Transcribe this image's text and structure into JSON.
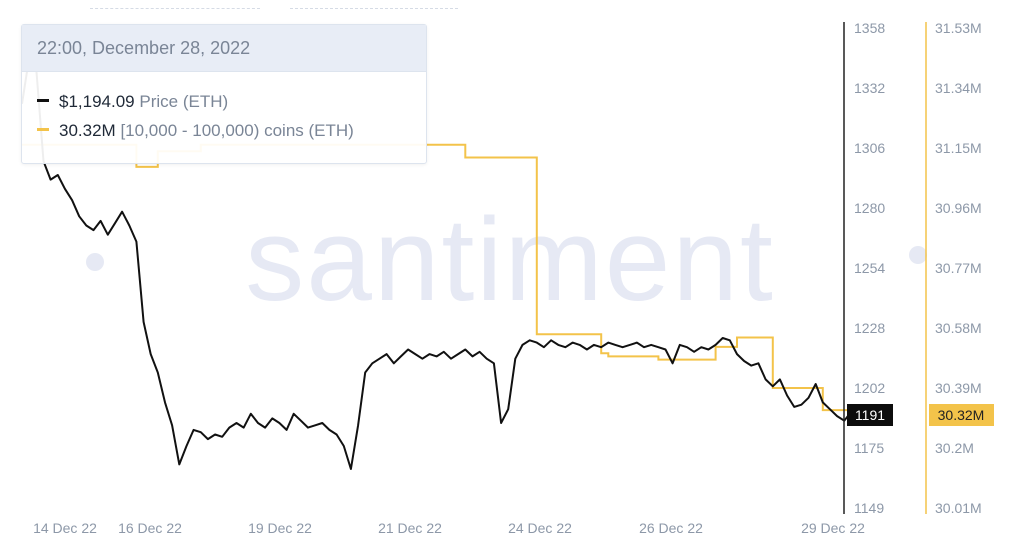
{
  "colors": {
    "price": "#111111",
    "coins": "#f3c34a",
    "grid": "#eef1f6",
    "axis_text": "#8d98a8",
    "watermark": "#e6e9f4",
    "tooltip_bg": "#e8edf6"
  },
  "watermark": "santiment",
  "tooltip": {
    "datetime": "22:00, December 28, 2022",
    "rows": [
      {
        "value": "$1,194.09",
        "label": "Price (ETH)",
        "color": "#111111"
      },
      {
        "value": "30.32M",
        "label": "[10,000 - 100,000) coins (ETH)",
        "color": "#f3c34a"
      }
    ]
  },
  "chart_data": {
    "type": "line",
    "x_range": [
      "2022-12-14T00:00",
      "2022-12-29T00:00"
    ],
    "x_ticks": [
      "14 Dec 22",
      "16 Dec 22",
      "19 Dec 22",
      "21 Dec 22",
      "24 Dec 22",
      "26 Dec 22",
      "29 Dec 22"
    ],
    "y_left": {
      "ticks": [
        "1358",
        "1332",
        "1306",
        "1280",
        "1254",
        "1228",
        "1202",
        "1175",
        "1149"
      ],
      "range": [
        1149,
        1358
      ],
      "current": "1191"
    },
    "y_right": {
      "ticks": [
        "31.53M",
        "31.34M",
        "31.15M",
        "30.96M",
        "30.77M",
        "30.58M",
        "30.39M",
        "30.2M",
        "30.01M"
      ],
      "range": [
        30.01,
        31.53
      ],
      "current": "30.32M"
    },
    "grid": false,
    "series": [
      {
        "name": "Price (ETH)",
        "axis": "left",
        "points": [
          [
            "2022-12-14T00:00",
            1325
          ],
          [
            "2022-12-14T03:00",
            1345
          ],
          [
            "2022-12-14T06:00",
            1340
          ],
          [
            "2022-12-14T09:00",
            1300
          ],
          [
            "2022-12-14T12:00",
            1292
          ],
          [
            "2022-12-14T15:00",
            1294
          ],
          [
            "2022-12-14T18:00",
            1288
          ],
          [
            "2022-12-14T21:00",
            1283
          ],
          [
            "2022-12-15T00:00",
            1276
          ],
          [
            "2022-12-15T03:00",
            1272
          ],
          [
            "2022-12-15T06:00",
            1270
          ],
          [
            "2022-12-15T09:00",
            1274
          ],
          [
            "2022-12-15T12:00",
            1268
          ],
          [
            "2022-12-15T15:00",
            1273
          ],
          [
            "2022-12-15T18:00",
            1278
          ],
          [
            "2022-12-15T21:00",
            1272
          ],
          [
            "2022-12-16T00:00",
            1265
          ],
          [
            "2022-12-16T03:00",
            1230
          ],
          [
            "2022-12-16T06:00",
            1216
          ],
          [
            "2022-12-16T09:00",
            1208
          ],
          [
            "2022-12-16T12:00",
            1195
          ],
          [
            "2022-12-16T15:00",
            1185
          ],
          [
            "2022-12-16T18:00",
            1168
          ],
          [
            "2022-12-16T21:00",
            1176
          ],
          [
            "2022-12-17T00:00",
            1183
          ],
          [
            "2022-12-17T03:00",
            1182
          ],
          [
            "2022-12-17T06:00",
            1179
          ],
          [
            "2022-12-17T09:00",
            1181
          ],
          [
            "2022-12-17T12:00",
            1180
          ],
          [
            "2022-12-17T15:00",
            1184
          ],
          [
            "2022-12-17T18:00",
            1186
          ],
          [
            "2022-12-17T21:00",
            1184
          ],
          [
            "2022-12-18T00:00",
            1190
          ],
          [
            "2022-12-18T03:00",
            1186
          ],
          [
            "2022-12-18T06:00",
            1184
          ],
          [
            "2022-12-18T09:00",
            1188
          ],
          [
            "2022-12-18T12:00",
            1186
          ],
          [
            "2022-12-18T15:00",
            1183
          ],
          [
            "2022-12-18T18:00",
            1190
          ],
          [
            "2022-12-18T21:00",
            1187
          ],
          [
            "2022-12-19T00:00",
            1184
          ],
          [
            "2022-12-19T03:00",
            1185
          ],
          [
            "2022-12-19T06:00",
            1186
          ],
          [
            "2022-12-19T09:00",
            1183
          ],
          [
            "2022-12-19T12:00",
            1181
          ],
          [
            "2022-12-19T15:00",
            1176
          ],
          [
            "2022-12-19T18:00",
            1166
          ],
          [
            "2022-12-19T21:00",
            1185
          ],
          [
            "2022-12-20T00:00",
            1208
          ],
          [
            "2022-12-20T03:00",
            1212
          ],
          [
            "2022-12-20T06:00",
            1214
          ],
          [
            "2022-12-20T09:00",
            1216
          ],
          [
            "2022-12-20T12:00",
            1212
          ],
          [
            "2022-12-20T15:00",
            1215
          ],
          [
            "2022-12-20T18:00",
            1218
          ],
          [
            "2022-12-20T21:00",
            1216
          ],
          [
            "2022-12-21T00:00",
            1214
          ],
          [
            "2022-12-21T03:00",
            1216
          ],
          [
            "2022-12-21T06:00",
            1215
          ],
          [
            "2022-12-21T09:00",
            1217
          ],
          [
            "2022-12-21T12:00",
            1214
          ],
          [
            "2022-12-21T15:00",
            1216
          ],
          [
            "2022-12-21T18:00",
            1218
          ],
          [
            "2022-12-21T21:00",
            1215
          ],
          [
            "2022-12-22T00:00",
            1217
          ],
          [
            "2022-12-22T03:00",
            1214
          ],
          [
            "2022-12-22T06:00",
            1212
          ],
          [
            "2022-12-22T09:00",
            1186
          ],
          [
            "2022-12-22T12:00",
            1192
          ],
          [
            "2022-12-22T15:00",
            1214
          ],
          [
            "2022-12-22T18:00",
            1220
          ],
          [
            "2022-12-22T21:00",
            1222
          ],
          [
            "2022-12-23T00:00",
            1221
          ],
          [
            "2022-12-23T03:00",
            1219
          ],
          [
            "2022-12-23T06:00",
            1222
          ],
          [
            "2022-12-23T09:00",
            1220
          ],
          [
            "2022-12-23T12:00",
            1219
          ],
          [
            "2022-12-23T15:00",
            1221
          ],
          [
            "2022-12-23T18:00",
            1220
          ],
          [
            "2022-12-23T21:00",
            1218
          ],
          [
            "2022-12-24T00:00",
            1220
          ],
          [
            "2022-12-24T03:00",
            1219
          ],
          [
            "2022-12-24T06:00",
            1221
          ],
          [
            "2022-12-24T09:00",
            1220
          ],
          [
            "2022-12-24T12:00",
            1219
          ],
          [
            "2022-12-24T15:00",
            1220
          ],
          [
            "2022-12-24T18:00",
            1221
          ],
          [
            "2022-12-24T21:00",
            1219
          ],
          [
            "2022-12-25T00:00",
            1220
          ],
          [
            "2022-12-25T03:00",
            1219
          ],
          [
            "2022-12-25T06:00",
            1218
          ],
          [
            "2022-12-25T09:00",
            1212
          ],
          [
            "2022-12-25T12:00",
            1220
          ],
          [
            "2022-12-25T15:00",
            1219
          ],
          [
            "2022-12-25T18:00",
            1217
          ],
          [
            "2022-12-25T21:00",
            1219
          ],
          [
            "2022-12-26T00:00",
            1218
          ],
          [
            "2022-12-26T03:00",
            1220
          ],
          [
            "2022-12-26T06:00",
            1223
          ],
          [
            "2022-12-26T09:00",
            1222
          ],
          [
            "2022-12-26T12:00",
            1216
          ],
          [
            "2022-12-26T15:00",
            1213
          ],
          [
            "2022-12-26T18:00",
            1211
          ],
          [
            "2022-12-26T21:00",
            1212
          ],
          [
            "2022-12-27T00:00",
            1205
          ],
          [
            "2022-12-27T03:00",
            1202
          ],
          [
            "2022-12-27T06:00",
            1205
          ],
          [
            "2022-12-27T09:00",
            1198
          ],
          [
            "2022-12-27T12:00",
            1193
          ],
          [
            "2022-12-27T15:00",
            1194
          ],
          [
            "2022-12-27T18:00",
            1197
          ],
          [
            "2022-12-27T21:00",
            1203
          ],
          [
            "2022-12-28T00:00",
            1195
          ],
          [
            "2022-12-28T03:00",
            1192
          ],
          [
            "2022-12-28T06:00",
            1189
          ],
          [
            "2022-12-28T09:00",
            1187
          ],
          [
            "2022-12-28T12:00",
            1191
          ],
          [
            "2022-12-28T15:00",
            1190
          ],
          [
            "2022-12-28T18:00",
            1192
          ],
          [
            "2022-12-28T21:00",
            1191
          ]
        ]
      },
      {
        "name": "[10,000 - 100,000) coins (ETH)",
        "axis": "right",
        "step": true,
        "points": [
          [
            "2022-12-14T00:00",
            31.16
          ],
          [
            "2022-12-15T21:00",
            31.16
          ],
          [
            "2022-12-16T00:00",
            31.09
          ],
          [
            "2022-12-16T06:00",
            31.09
          ],
          [
            "2022-12-16T09:00",
            31.14
          ],
          [
            "2022-12-17T00:00",
            31.14
          ],
          [
            "2022-12-17T03:00",
            31.16
          ],
          [
            "2022-12-21T12:00",
            31.16
          ],
          [
            "2022-12-21T18:00",
            31.12
          ],
          [
            "2022-12-22T21:00",
            31.12
          ],
          [
            "2022-12-23T00:00",
            30.56
          ],
          [
            "2022-12-24T00:00",
            30.56
          ],
          [
            "2022-12-24T03:00",
            30.5
          ],
          [
            "2022-12-24T06:00",
            30.49
          ],
          [
            "2022-12-25T00:00",
            30.49
          ],
          [
            "2022-12-25T03:00",
            30.48
          ],
          [
            "2022-12-26T00:00",
            30.48
          ],
          [
            "2022-12-26T03:00",
            30.52
          ],
          [
            "2022-12-26T09:00",
            30.52
          ],
          [
            "2022-12-26T12:00",
            30.55
          ],
          [
            "2022-12-27T00:00",
            30.55
          ],
          [
            "2022-12-27T03:00",
            30.39
          ],
          [
            "2022-12-27T21:00",
            30.39
          ],
          [
            "2022-12-28T00:00",
            30.32
          ],
          [
            "2022-12-28T21:00",
            30.32
          ]
        ]
      }
    ]
  }
}
